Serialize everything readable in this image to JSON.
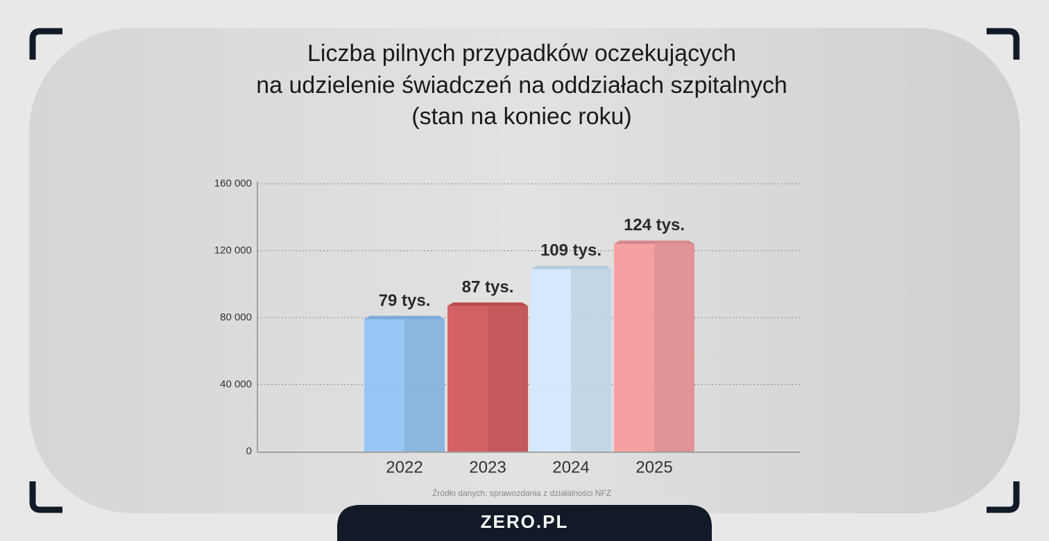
{
  "chart_data": {
    "type": "bar",
    "title": [
      "Liczba pilnych przypadków oczekujących",
      "na udzielenie świadczeń na oddziałach szpitalnych",
      "(stan na koniec roku)"
    ],
    "categories": [
      "2022",
      "2023",
      "2024",
      "2025"
    ],
    "values": [
      79000,
      87000,
      109000,
      124000
    ],
    "value_labels": [
      "79 tys.",
      "87 tys.",
      "109 tys.",
      "124 tys."
    ],
    "colors": [
      "#8fc3f5",
      "#d2565a",
      "#d3e9fd",
      "#f69b9c"
    ],
    "ylim": [
      0,
      160000
    ],
    "yticks": [
      0,
      {
        "value": 40000,
        "label": "40 000"
      },
      {
        "value": 80000,
        "label": "80 000"
      },
      {
        "value": 120000,
        "label": "120 000"
      },
      {
        "value": 160000,
        "label": "160 000"
      }
    ],
    "grid": true,
    "source": "Źródło danych: sprawozdania z działalności NFZ"
  },
  "brand": "ZERO.PL"
}
